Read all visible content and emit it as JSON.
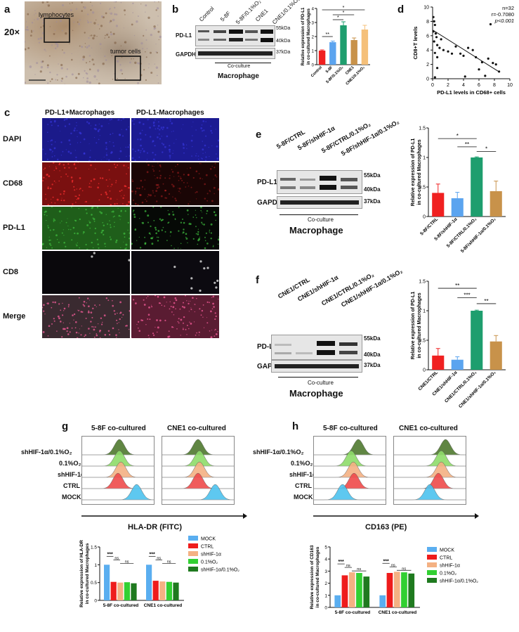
{
  "panels": {
    "a": {
      "label": "a",
      "magnification": "20×",
      "lymphocytes": "lymphocytes",
      "tumor_cells": "tumor cells"
    },
    "b": {
      "label": "b",
      "lanes": [
        "Control",
        "5-8F",
        "5-8F/0.1%O₂",
        "CNE1",
        "CNE1/0.1%O₂"
      ],
      "bands": [
        {
          "name": "PD-L1",
          "sizes": [
            "55kDa",
            "40kDa"
          ]
        },
        {
          "name": "GAPDH",
          "sizes": [
            "37kDa"
          ]
        }
      ],
      "coculture": "Co-culture",
      "cell": "Macrophage"
    },
    "d": {
      "label": "d",
      "stats": [
        "n=32",
        "r=-0.7080",
        "p<0.001"
      ]
    },
    "c": {
      "label": "c",
      "columns": [
        "PD-L1+Macrophages",
        "PD-L1-Macrophages"
      ],
      "rows": [
        "DAPI",
        "CD68",
        "PD-L1",
        "CD8",
        "Merge"
      ]
    },
    "e": {
      "label": "e",
      "lanes": [
        "5-8F/CTRL",
        "5-8F/shHIF-1α",
        "5-8F/CTRL/0.1%O₂",
        "5-8F/shHIF-1α/0.1%O₂"
      ],
      "bands": [
        {
          "name": "PD-L1",
          "sizes": [
            "55kDa",
            "40kDa"
          ]
        },
        {
          "name": "GAPDH",
          "sizes": [
            "37kDa"
          ]
        }
      ],
      "coculture": "Co-culture",
      "cell": "Macrophage"
    },
    "f": {
      "label": "f",
      "lanes": [
        "CNE1/CTRL",
        "CNE1/shHIF-1α",
        "CNE1/CTRL/0.1%O₂",
        "CNE1/shHIF-1α/0.1%O₂"
      ],
      "bands": [
        {
          "name": "PD-L1",
          "sizes": [
            "55kDa",
            "40kDa"
          ]
        },
        {
          "name": "GAPDH",
          "sizes": [
            "37kDa"
          ]
        }
      ],
      "coculture": "Co-culture",
      "cell": "Macrophage"
    },
    "g": {
      "label": "g",
      "titles": [
        "5-8F co-cultured",
        "CNE1 co-cultured"
      ],
      "conditions": [
        "shHIF-1α/0.1%O₂",
        "0.1%O₂",
        "shHIF-1α",
        "CTRL",
        "MOCK"
      ],
      "axis": "HLA-DR (FITC)"
    },
    "h": {
      "label": "h",
      "titles": [
        "5-8F co-cultured",
        "CNE1 co-cultured"
      ],
      "conditions": [
        "shHIF-1α/0.1%O₂",
        "0.1%O₂",
        "shHIF-1α",
        "CTRL",
        "MOCK"
      ],
      "axis": "CD163  (PE)"
    }
  },
  "chart_data": [
    {
      "id": "b-bar",
      "type": "bar",
      "categories": [
        "Control",
        "5-8F",
        "5-8F/0.1%O₂",
        "CNE1",
        "CNE1/0.1%O₂"
      ],
      "values": [
        1.0,
        1.6,
        2.8,
        1.75,
        2.5
      ],
      "errors": [
        0.05,
        0.08,
        0.25,
        0.15,
        0.3
      ],
      "colors": [
        "#f02020",
        "#5ba4ef",
        "#1e9e6e",
        "#c8924a",
        "#f5c07a"
      ],
      "ylabel": "Relative expression of PD-L1\nin co-cultured Macrophages",
      "ylim": [
        0,
        4
      ],
      "yticks": [
        0,
        1,
        2,
        3,
        4
      ],
      "significance": [
        "**",
        "*",
        "*",
        "*"
      ]
    },
    {
      "id": "d-scatter",
      "type": "scatter",
      "xlabel": "PD-L1 levels in CD68+ cells",
      "ylabel": "CD8+T levels",
      "xlim": [
        0,
        10
      ],
      "ylim": [
        0,
        10
      ],
      "xticks": [
        0,
        2,
        4,
        6,
        8,
        10
      ],
      "yticks": [
        0,
        2,
        4,
        6,
        8,
        10
      ],
      "points": [
        [
          0.1,
          8.6
        ],
        [
          0.2,
          8.0
        ],
        [
          0.3,
          7.5
        ],
        [
          0.1,
          6.6
        ],
        [
          0.4,
          6.3
        ],
        [
          0.5,
          5.8
        ],
        [
          0.2,
          5.2
        ],
        [
          0.6,
          4.7
        ],
        [
          0.9,
          4.3
        ],
        [
          1.1,
          5.5
        ],
        [
          0.3,
          3.6
        ],
        [
          0.6,
          3.0
        ],
        [
          1.4,
          4.0
        ],
        [
          2.0,
          3.8
        ],
        [
          2.5,
          3.5
        ],
        [
          3.0,
          4.5
        ],
        [
          3.6,
          3.5
        ],
        [
          4.0,
          3.2
        ],
        [
          4.6,
          4.3
        ],
        [
          5.2,
          4.0
        ],
        [
          5.6,
          3.0
        ],
        [
          6.0,
          1.3
        ],
        [
          6.4,
          2.3
        ],
        [
          6.8,
          0.4
        ],
        [
          7.2,
          2.8
        ],
        [
          7.5,
          7.6
        ],
        [
          7.8,
          2.2
        ],
        [
          8.2,
          2.0
        ],
        [
          8.6,
          1.0
        ],
        [
          0.3,
          0.2
        ],
        [
          4.2,
          0.3
        ],
        [
          0.6,
          1.5
        ]
      ],
      "regression": [
        [
          0,
          6.8
        ],
        [
          8.7,
          0.9
        ]
      ],
      "stats": [
        "n=32",
        "r=-0.7080",
        "p<0.001"
      ]
    },
    {
      "id": "e-bar",
      "type": "bar",
      "categories": [
        "5-8F/CTRL",
        "5-8F/shHIF-1α",
        "5-8F/CTRL/0.1%O₂",
        "5-8F/shHIF-1α/0.1%O₂"
      ],
      "values": [
        0.4,
        0.31,
        1.0,
        0.43
      ],
      "errors": [
        0.15,
        0.1,
        0.01,
        0.17
      ],
      "colors": [
        "#f02020",
        "#5ba4ef",
        "#1e9e6e",
        "#c8924a"
      ],
      "ylabel": "Relative expression of PD-L1\nin co-cultured Macrophages",
      "ylim": [
        0,
        1.5
      ],
      "yticks": [
        0,
        0.5,
        1.0,
        1.5
      ],
      "significance": [
        "*",
        "**",
        "*"
      ]
    },
    {
      "id": "f-bar",
      "type": "bar",
      "categories": [
        "CNE1/CTRL",
        "CNE1/shHIF-1α",
        "CNE1/CTRL/0.1%O₂",
        "CNE1/shHIF-1α/0.1%O₂"
      ],
      "values": [
        0.24,
        0.17,
        1.0,
        0.48
      ],
      "errors": [
        0.12,
        0.05,
        0.01,
        0.1
      ],
      "colors": [
        "#f02020",
        "#5ba4ef",
        "#1e9e6e",
        "#c8924a"
      ],
      "ylabel": "Relative expression of PD-L1\nin co-cultured Macrophages",
      "ylim": [
        0,
        1.5
      ],
      "yticks": [
        0,
        0.5,
        1.0,
        1.5
      ],
      "significance": [
        "**",
        "***",
        "**"
      ]
    },
    {
      "id": "g-bar",
      "type": "bar",
      "categories": [
        "5-8F co-cultured",
        "CNE1 co-cultured"
      ],
      "series": [
        {
          "name": "MOCK",
          "values": [
            1.0,
            1.0
          ],
          "color": "#5aaef0"
        },
        {
          "name": "CTRL",
          "values": [
            0.52,
            0.55
          ],
          "color": "#ee1c1c"
        },
        {
          "name": "shHIF-1α",
          "values": [
            0.5,
            0.53
          ],
          "color": "#f4b183"
        },
        {
          "name": "0.1%O₂",
          "values": [
            0.51,
            0.52
          ],
          "color": "#32d032"
        },
        {
          "name": "shHIF-1α/0.1%O₂",
          "values": [
            0.48,
            0.5
          ],
          "color": "#1f7a1f"
        }
      ],
      "ylabel": "Relative expression of HLA-DR\nin co-cultured Macrophages",
      "ylim": [
        0,
        1.5
      ],
      "yticks": [
        0,
        0.5,
        1.0,
        1.5
      ],
      "significance": [
        "***",
        "ns",
        "ns"
      ]
    },
    {
      "id": "h-bar",
      "type": "bar",
      "categories": [
        "5-8F co-cultured",
        "CNE1 co-cultured"
      ],
      "series": [
        {
          "name": "MOCK",
          "values": [
            1.0,
            1.0
          ],
          "color": "#5aaef0"
        },
        {
          "name": "CTRL",
          "values": [
            2.65,
            2.85
          ],
          "color": "#ee1c1c"
        },
        {
          "name": "shHIF-1α",
          "values": [
            2.9,
            2.95
          ],
          "color": "#f4b183"
        },
        {
          "name": "0.1%O₂",
          "values": [
            2.85,
            2.9
          ],
          "color": "#32d032"
        },
        {
          "name": "shHIF-1α/0.1%O₂",
          "values": [
            2.55,
            2.8
          ],
          "color": "#1f7a1f"
        }
      ],
      "ylabel": "Relative expression of CD163\nin co-cultured Macrophages",
      "ylim": [
        0,
        5
      ],
      "yticks": [
        0,
        1,
        2,
        3,
        4,
        5
      ],
      "significance": [
        "***",
        "ns",
        "ns"
      ]
    }
  ]
}
